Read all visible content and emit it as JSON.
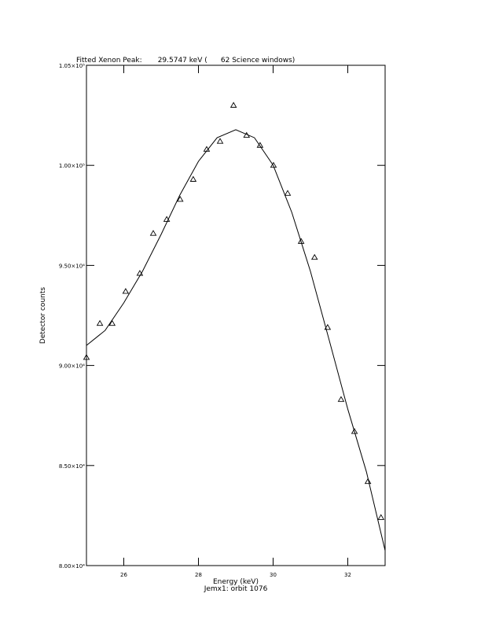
{
  "chart_data": {
    "type": "scatter-fit",
    "title": "Fitted Xenon Peak:       29.5747 keV (      62 Science windows)",
    "x_label": "Energy (keV)",
    "subtitle": "Jemx1: orbit 1076",
    "y_label": "Detector counts",
    "xlim": [
      25,
      33
    ],
    "xticks": [
      26,
      28,
      30,
      32
    ],
    "ylim": [
      80000,
      105000
    ],
    "yticks": [
      {
        "value": 80000,
        "label": "8.00×10⁴"
      },
      {
        "value": 85000,
        "label": "8.50×10⁴"
      },
      {
        "value": 90000,
        "label": "9.00×10⁴"
      },
      {
        "value": 95000,
        "label": "9.50×10⁴"
      },
      {
        "value": 100000,
        "label": "1.00×10⁵"
      },
      {
        "value": 105000,
        "label": "1.05×10⁵"
      }
    ],
    "series": [
      {
        "style": "triangle",
        "color": "#000000",
        "x": [
          25.0,
          25.36,
          25.69,
          26.05,
          26.43,
          26.79,
          27.15,
          27.51,
          27.86,
          28.22,
          28.58,
          28.94,
          29.29,
          29.65,
          30.01,
          30.39,
          30.75,
          31.11,
          31.46,
          31.82,
          32.18,
          32.54,
          32.89
        ],
        "values": [
          90400,
          92100,
          92100,
          93700,
          94600,
          96600,
          97300,
          98300,
          99300,
          100800,
          101200,
          103000,
          101500,
          101000,
          100000,
          98600,
          96200,
          95400,
          91900,
          88300,
          86700,
          84200,
          82400
        ]
      },
      {
        "style": "line",
        "color": "#000000",
        "x": [
          25.0,
          25.5,
          26.0,
          26.5,
          27.0,
          27.5,
          28.0,
          28.5,
          29.0,
          29.5,
          30.0,
          30.5,
          31.0,
          31.5,
          32.0,
          32.5,
          33.0
        ],
        "values": [
          91000,
          91750,
          93130,
          94700,
          96550,
          98510,
          100200,
          101380,
          101780,
          101380,
          100010,
          97650,
          94700,
          91280,
          87820,
          84680,
          80750
        ]
      }
    ]
  }
}
